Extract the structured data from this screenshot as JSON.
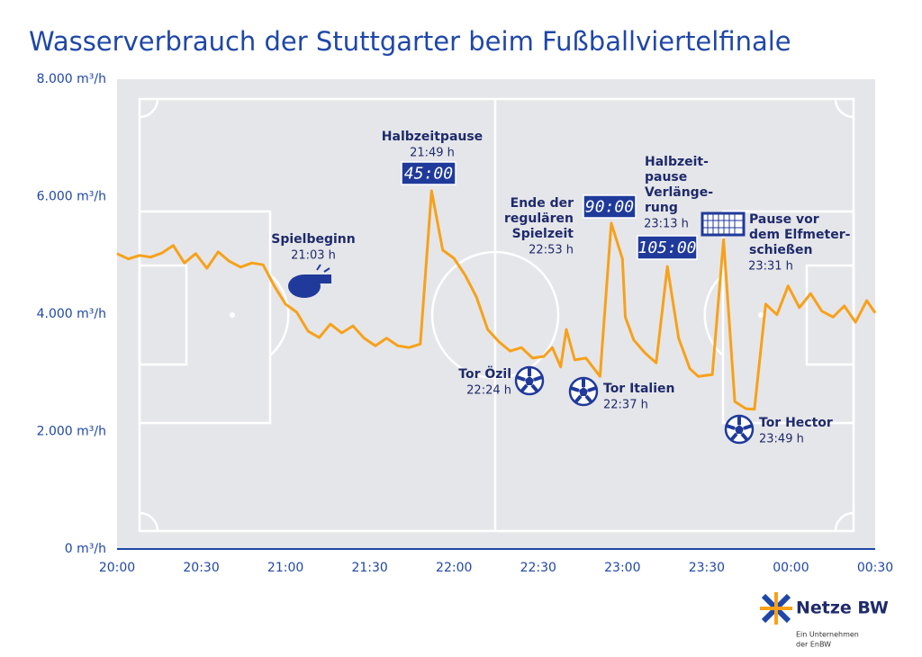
{
  "chart_data": {
    "type": "line",
    "title": "Wasserverbrauch der Stuttgarter beim Fußballviertelfinale",
    "x": [
      0,
      4,
      8,
      12,
      16,
      20,
      24,
      28,
      32,
      36,
      40,
      44,
      48,
      52,
      56,
      60,
      64,
      68,
      72,
      76,
      80,
      84,
      88,
      92,
      96,
      100,
      104,
      108,
      112,
      116,
      120,
      124,
      128,
      132,
      136,
      140,
      144,
      148,
      152,
      155,
      158,
      160,
      163,
      167,
      172,
      176,
      180,
      181,
      184,
      188,
      192,
      196,
      200,
      204,
      207,
      212,
      216,
      220,
      224,
      227,
      231,
      235,
      239,
      243,
      247,
      251,
      255,
      259,
      263,
      267,
      270
    ],
    "values": [
      5030,
      4940,
      5000,
      4970,
      5040,
      5170,
      4870,
      5030,
      4780,
      5060,
      4900,
      4800,
      4870,
      4840,
      4480,
      4170,
      4030,
      3710,
      3600,
      3830,
      3680,
      3800,
      3590,
      3460,
      3590,
      3460,
      3430,
      3490,
      6100,
      5090,
      4950,
      4660,
      4290,
      3740,
      3530,
      3370,
      3430,
      3250,
      3280,
      3430,
      3100,
      3740,
      3220,
      3250,
      2940,
      5550,
      4940,
      3950,
      3560,
      3340,
      3170,
      4810,
      3590,
      3070,
      2940,
      2970,
      5270,
      2510,
      2390,
      2380,
      4170,
      3990,
      4480,
      4110,
      4350,
      4050,
      3950,
      4140,
      3860,
      4230,
      4020
    ],
    "color": "#f7a11a",
    "xlim": [
      0,
      270
    ],
    "ylim": [
      0,
      8000
    ],
    "xticks": [
      {
        "value": 0,
        "label": "20:00"
      },
      {
        "value": 30,
        "label": "20:30"
      },
      {
        "value": 60,
        "label": "21:00"
      },
      {
        "value": 90,
        "label": "21:30"
      },
      {
        "value": 120,
        "label": "22:00"
      },
      {
        "value": 150,
        "label": "22:30"
      },
      {
        "value": 180,
        "label": "23:00"
      },
      {
        "value": 210,
        "label": "23:30"
      },
      {
        "value": 240,
        "label": "00:00"
      },
      {
        "value": 270,
        "label": "00:30"
      }
    ],
    "yticks": [
      {
        "value": 0,
        "label": "0 m³/h"
      },
      {
        "value": 2000,
        "label": "2.000 m³/h"
      },
      {
        "value": 4000,
        "label": "4.000 m³/h"
      },
      {
        "value": 6000,
        "label": "6.000 m³/h"
      },
      {
        "value": 8000,
        "label": "8.000 m³/h"
      }
    ],
    "annotations": [
      {
        "lines": [
          "Spielbeginn"
        ],
        "time": "21:03 h"
      },
      {
        "lines": [
          "Halbzeitpause"
        ],
        "time": "21:49 h",
        "badge": "45:00"
      },
      {
        "lines": [
          "Ende der",
          "regulären",
          "Spielzeit"
        ],
        "time": "22:53 h",
        "badge": "90:00"
      },
      {
        "lines": [
          "Halbzeit-",
          "pause",
          "Verlänge-",
          "rung"
        ],
        "time": "23:13 h",
        "badge": "105:00"
      },
      {
        "lines": [
          "Pause vor",
          "dem Elfmeter-",
          "schießen"
        ],
        "time": "23:31 h"
      },
      {
        "lines": [
          "Tor Özil"
        ],
        "time": "22:24 h"
      },
      {
        "lines": [
          "Tor Italien"
        ],
        "time": "22:37 h"
      },
      {
        "lines": [
          "Tor Hector"
        ],
        "time": "23:49 h"
      }
    ]
  },
  "logo": {
    "name": "Netze BW",
    "tagline": [
      "Ein Unternehmen",
      "der EnBW"
    ]
  }
}
